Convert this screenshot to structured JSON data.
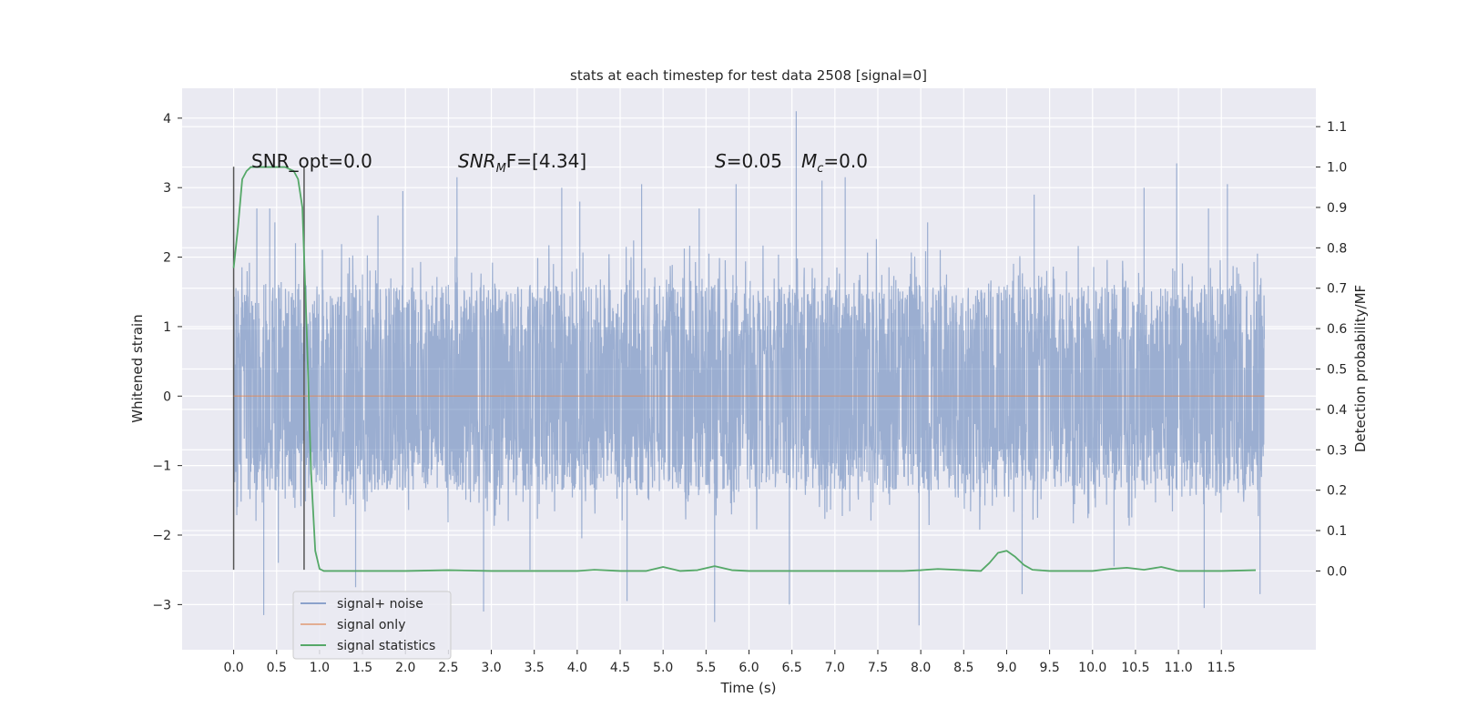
{
  "chart_data": {
    "type": "line",
    "title": "stats at each timestep for test data 2508 [signal=0]",
    "xlabel": "Time (s)",
    "ylabel": "Whitened strain",
    "ylabel_right": "Detection probability/MF",
    "xlim": [
      -0.6,
      12.6
    ],
    "ylim": [
      -3.65,
      4.43
    ],
    "ylim_right": [
      -0.195,
      1.195
    ],
    "x_ticks": [
      "0.0",
      "0.5",
      "1.0",
      "1.5",
      "2.0",
      "2.5",
      "3.0",
      "3.5",
      "4.0",
      "4.5",
      "5.0",
      "5.5",
      "6.0",
      "6.5",
      "7.0",
      "7.5",
      "8.0",
      "8.5",
      "9.0",
      "9.5",
      "10.0",
      "10.5",
      "11.0",
      "11.5"
    ],
    "y_ticks": [
      "4",
      "3",
      "2",
      "1",
      "0",
      "−1",
      "−2",
      "−3"
    ],
    "y_tick_values": [
      4,
      3,
      2,
      1,
      0,
      -1,
      -2,
      -3
    ],
    "y_right_ticks": [
      "1.1",
      "1.0",
      "0.9",
      "0.8",
      "0.7",
      "0.6",
      "0.5",
      "0.4",
      "0.3",
      "0.2",
      "0.1",
      "0.0"
    ],
    "y_right_tick_values": [
      1.1,
      1.0,
      0.9,
      0.8,
      0.7,
      0.6,
      0.5,
      0.4,
      0.3,
      0.2,
      0.1,
      0.0
    ],
    "grid": true,
    "legend_placement": "lower-left",
    "annotations": {
      "snr_opt": "SNR_opt=0.0",
      "snr_mf_base": "SNR",
      "snr_mf_sub": "M",
      "snr_mf_rest": "F=[4.34]",
      "s_var": "S",
      "s_val": "=0.05",
      "mc_var": "M",
      "mc_sub": "c",
      "mc_val": "=0.0"
    },
    "markers": {
      "vertical_lines_x": [
        0.0,
        0.82
      ],
      "y_range": [
        -2.5,
        3.3
      ]
    },
    "series": [
      {
        "name": "signal+ noise",
        "color": "#4c72b0",
        "x_range": [
          0.0,
          12.0
        ],
        "envelope_upper": 1.6,
        "envelope_lower": -1.35,
        "spike_peaks": [
          {
            "x": 0.27,
            "y": 2.7
          },
          {
            "x": 0.42,
            "y": 2.7
          },
          {
            "x": 0.48,
            "y": 2.5
          },
          {
            "x": 0.72,
            "y": 2.2
          },
          {
            "x": 1.68,
            "y": 2.6
          },
          {
            "x": 1.97,
            "y": 2.95
          },
          {
            "x": 2.6,
            "y": 3.15
          },
          {
            "x": 3.82,
            "y": 3.0
          },
          {
            "x": 4.03,
            "y": 2.8
          },
          {
            "x": 4.75,
            "y": 3.05
          },
          {
            "x": 5.42,
            "y": 2.7
          },
          {
            "x": 5.85,
            "y": 3.05
          },
          {
            "x": 6.55,
            "y": 4.1
          },
          {
            "x": 6.85,
            "y": 3.1
          },
          {
            "x": 7.12,
            "y": 3.15
          },
          {
            "x": 8.08,
            "y": 2.5
          },
          {
            "x": 9.32,
            "y": 2.9
          },
          {
            "x": 10.6,
            "y": 3.0
          },
          {
            "x": 10.98,
            "y": 3.35
          },
          {
            "x": 11.35,
            "y": 2.7
          },
          {
            "x": 11.57,
            "y": 3.05
          },
          {
            "x": 11.92,
            "y": 2.05
          }
        ],
        "spike_troughs": [
          {
            "x": 0.35,
            "y": -3.15
          },
          {
            "x": 0.52,
            "y": -2.4
          },
          {
            "x": 1.42,
            "y": -2.75
          },
          {
            "x": 2.91,
            "y": -3.1
          },
          {
            "x": 3.45,
            "y": -2.5
          },
          {
            "x": 4.58,
            "y": -2.95
          },
          {
            "x": 5.6,
            "y": -3.25
          },
          {
            "x": 6.47,
            "y": -3.0
          },
          {
            "x": 7.98,
            "y": -3.3
          },
          {
            "x": 9.18,
            "y": -2.85
          },
          {
            "x": 10.25,
            "y": -2.45
          },
          {
            "x": 11.3,
            "y": -3.05
          },
          {
            "x": 11.95,
            "y": -2.85
          }
        ]
      },
      {
        "name": "signal only",
        "color": "#dd8452",
        "x": [
          0.0,
          12.0
        ],
        "y": [
          0.0,
          0.0
        ]
      },
      {
        "name": "signal statistics",
        "color": "#55a868",
        "axis": "right",
        "x": [
          0.0,
          0.05,
          0.1,
          0.15,
          0.2,
          0.3,
          0.4,
          0.5,
          0.6,
          0.65,
          0.7,
          0.75,
          0.8,
          0.85,
          0.9,
          0.95,
          1.0,
          1.05,
          1.5,
          2.0,
          2.5,
          3.0,
          3.5,
          4.0,
          4.2,
          4.5,
          4.8,
          5.0,
          5.2,
          5.4,
          5.6,
          5.8,
          6.0,
          6.5,
          7.0,
          7.5,
          7.8,
          8.0,
          8.2,
          8.5,
          8.7,
          8.8,
          8.9,
          9.0,
          9.1,
          9.2,
          9.3,
          9.5,
          10.0,
          10.2,
          10.4,
          10.6,
          10.8,
          11.0,
          11.5,
          11.9
        ],
        "y": [
          0.75,
          0.85,
          0.97,
          0.99,
          1.0,
          1.0,
          1.0,
          1.0,
          1.0,
          0.995,
          0.99,
          0.97,
          0.9,
          0.6,
          0.25,
          0.05,
          0.005,
          0.0,
          0.0,
          0.0,
          0.002,
          0.0,
          0.0,
          0.0,
          0.003,
          0.0,
          0.0,
          0.01,
          0.0,
          0.002,
          0.012,
          0.002,
          0.0,
          0.0,
          0.0,
          0.0,
          0.0,
          0.002,
          0.005,
          0.002,
          0.0,
          0.02,
          0.045,
          0.05,
          0.035,
          0.015,
          0.003,
          0.0,
          0.0,
          0.005,
          0.008,
          0.003,
          0.01,
          0.0,
          0.0,
          0.002
        ]
      }
    ]
  }
}
